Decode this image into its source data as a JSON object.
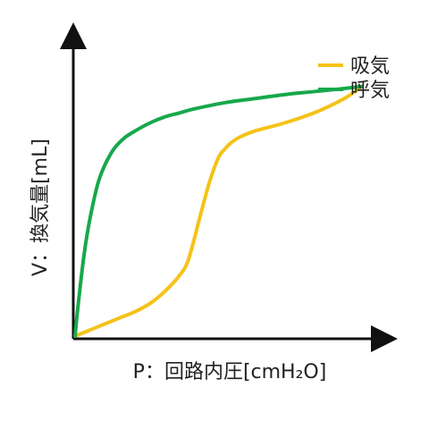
{
  "chart_data": {
    "type": "line",
    "xlabel": "P：回路内圧[cmH₂O]",
    "ylabel": "V：換気量[mL]",
    "grid": false,
    "legend_position": "top-right",
    "series": [
      {
        "name": "吸気",
        "color": "#f5c218",
        "x": [
          0,
          5,
          10,
          15,
          20,
          25,
          30,
          35,
          38,
          42,
          45,
          48,
          50,
          52,
          55,
          60,
          70,
          80,
          90,
          96
        ],
        "y": [
          0,
          3,
          6,
          9,
          12,
          16,
          22,
          30,
          38,
          60,
          76,
          88,
          92,
          95,
          98,
          101,
          105,
          110,
          117,
          123
        ]
      },
      {
        "name": "呼気",
        "color": "#17a84c",
        "x": [
          0,
          1,
          3,
          5,
          8,
          12,
          16,
          20,
          25,
          30,
          35,
          40,
          50,
          60,
          70,
          80,
          90,
          96
        ],
        "y": [
          0,
          15,
          40,
          58,
          77,
          90,
          97,
          101,
          105,
          108,
          110,
          112,
          115,
          117,
          119,
          120.5,
          122,
          123
        ]
      }
    ]
  }
}
